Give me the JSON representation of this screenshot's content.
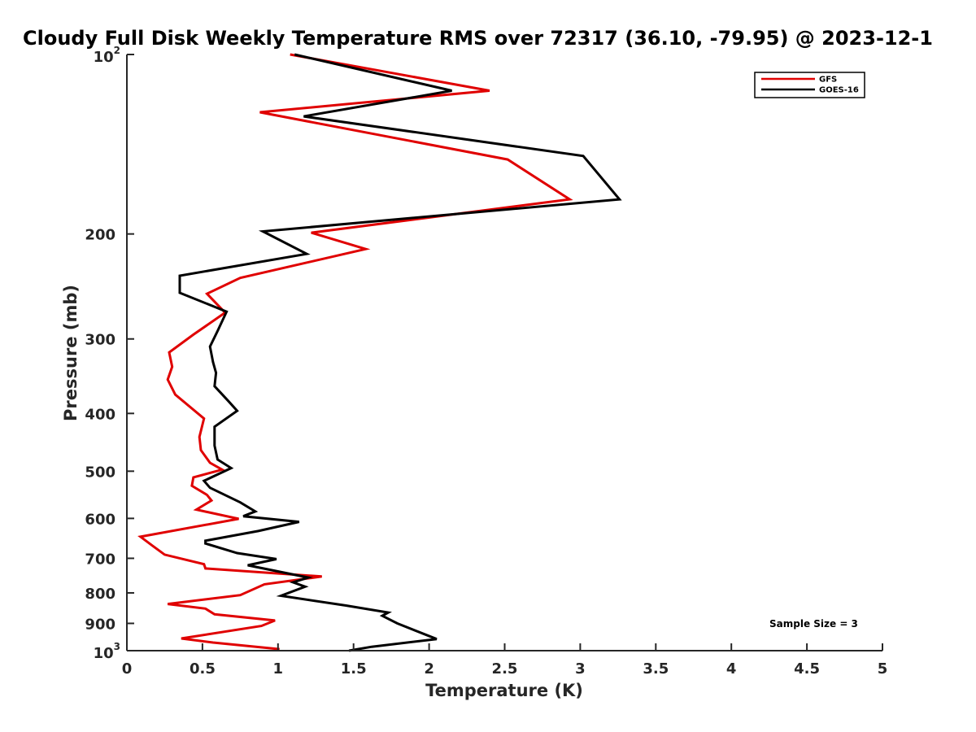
{
  "chart_data": {
    "type": "line",
    "title": "Cloudy Full Disk Weekly Temperature RMS over 72317 (36.10, -79.95) @ 2023-12-1",
    "xlabel": "Temperature (K)",
    "ylabel": "Pressure (mb)",
    "xlim": [
      0,
      5
    ],
    "ylim": [
      100,
      1000
    ],
    "y_scale": "log",
    "y_reversed": true,
    "grid": false,
    "legend_position": "top-right",
    "x_ticks": [
      {
        "value": 0,
        "label": "0"
      },
      {
        "value": 0.5,
        "label": "0.5"
      },
      {
        "value": 1,
        "label": "1"
      },
      {
        "value": 1.5,
        "label": "1.5"
      },
      {
        "value": 2,
        "label": "2"
      },
      {
        "value": 2.5,
        "label": "2.5"
      },
      {
        "value": 3,
        "label": "3"
      },
      {
        "value": 3.5,
        "label": "3.5"
      },
      {
        "value": 4,
        "label": "4"
      },
      {
        "value": 4.5,
        "label": "4.5"
      },
      {
        "value": 5,
        "label": "5"
      }
    ],
    "y_ticks": [
      {
        "value": 100,
        "label": "10",
        "exp": "2"
      },
      {
        "value": 200,
        "label": "200"
      },
      {
        "value": 300,
        "label": "300"
      },
      {
        "value": 400,
        "label": "400"
      },
      {
        "value": 500,
        "label": "500"
      },
      {
        "value": 600,
        "label": "600"
      },
      {
        "value": 700,
        "label": "700"
      },
      {
        "value": 800,
        "label": "800"
      },
      {
        "value": 900,
        "label": "900"
      },
      {
        "value": 1000,
        "label": "10",
        "exp": "3"
      }
    ],
    "annotation": "Sample Size = 3",
    "series": [
      {
        "name": "GFS",
        "color": "#e00000",
        "points": [
          [
            1.08,
            100
          ],
          [
            2.4,
            115
          ],
          [
            0.88,
            125
          ],
          [
            2.52,
            150
          ],
          [
            2.93,
            175
          ],
          [
            1.22,
            199
          ],
          [
            1.58,
            212
          ],
          [
            0.75,
            237
          ],
          [
            0.53,
            252
          ],
          [
            0.65,
            271
          ],
          [
            0.44,
            295
          ],
          [
            0.28,
            316
          ],
          [
            0.3,
            334
          ],
          [
            0.27,
            351
          ],
          [
            0.32,
            372
          ],
          [
            0.51,
            408
          ],
          [
            0.48,
            438
          ],
          [
            0.49,
            461
          ],
          [
            0.55,
            484
          ],
          [
            0.63,
            497
          ],
          [
            0.44,
            512
          ],
          [
            0.43,
            529
          ],
          [
            0.53,
            548
          ],
          [
            0.56,
            560
          ],
          [
            0.46,
            580
          ],
          [
            0.74,
            601
          ],
          [
            0.09,
            644
          ],
          [
            0.17,
            667
          ],
          [
            0.25,
            690
          ],
          [
            0.51,
            716
          ],
          [
            0.52,
            728
          ],
          [
            1.29,
            751
          ],
          [
            0.91,
            774
          ],
          [
            0.75,
            807
          ],
          [
            0.27,
            835
          ],
          [
            0.52,
            850
          ],
          [
            0.58,
            869
          ],
          [
            0.98,
            890
          ],
          [
            0.89,
            909
          ],
          [
            0.36,
            954
          ],
          [
            0.57,
            969
          ],
          [
            1.01,
            994
          ]
        ]
      },
      {
        "name": "GOES-16",
        "color": "#000000",
        "points": [
          [
            1.11,
            100
          ],
          [
            2.15,
            115
          ],
          [
            1.17,
            127
          ],
          [
            3.02,
            148
          ],
          [
            3.26,
            175
          ],
          [
            0.9,
            198
          ],
          [
            1.19,
            216
          ],
          [
            0.35,
            235
          ],
          [
            0.35,
            251
          ],
          [
            0.66,
            270
          ],
          [
            0.6,
            291
          ],
          [
            0.55,
            309
          ],
          [
            0.57,
            328
          ],
          [
            0.59,
            342
          ],
          [
            0.58,
            360
          ],
          [
            0.67,
            381
          ],
          [
            0.73,
            396
          ],
          [
            0.58,
            421
          ],
          [
            0.58,
            453
          ],
          [
            0.6,
            478
          ],
          [
            0.69,
            494
          ],
          [
            0.51,
            519
          ],
          [
            0.55,
            533
          ],
          [
            0.75,
            564
          ],
          [
            0.85,
            584
          ],
          [
            0.77,
            595
          ],
          [
            1.14,
            608
          ],
          [
            0.87,
            630
          ],
          [
            0.52,
            654
          ],
          [
            0.52,
            661
          ],
          [
            0.73,
            686
          ],
          [
            0.99,
            702
          ],
          [
            0.8,
            719
          ],
          [
            1.2,
            754
          ],
          [
            1.1,
            768
          ],
          [
            1.18,
            781
          ],
          [
            1.02,
            809
          ],
          [
            1.45,
            840
          ],
          [
            1.73,
            863
          ],
          [
            1.69,
            874
          ],
          [
            1.79,
            900
          ],
          [
            2.05,
            956
          ],
          [
            1.62,
            985
          ],
          [
            1.47,
            1000
          ]
        ]
      }
    ]
  }
}
